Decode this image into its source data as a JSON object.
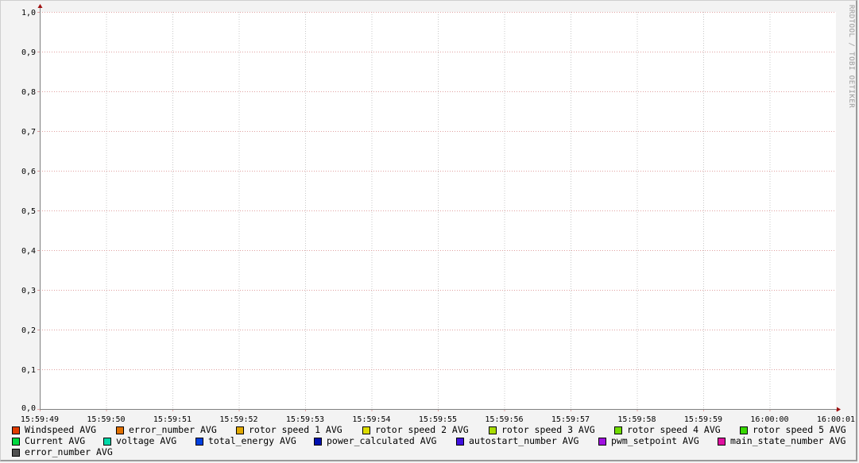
{
  "chart_data": {
    "type": "line",
    "title": "",
    "xlabel": "",
    "ylabel": "",
    "ylim": [
      0,
      1.0
    ],
    "y_ticks": [
      "0,0",
      "0,1",
      "0,2",
      "0,3",
      "0,4",
      "0,5",
      "0,6",
      "0,7",
      "0,8",
      "0,9",
      "1,0"
    ],
    "x_ticks": [
      "15:59:49",
      "15:59:50",
      "15:59:51",
      "15:59:52",
      "15:59:53",
      "15:59:54",
      "15:59:55",
      "15:59:56",
      "15:59:57",
      "15:59:58",
      "15:59:59",
      "16:00:00",
      "16:00:01"
    ],
    "grid": true,
    "legend_placement": "bottom",
    "series": [
      {
        "name": "Windspeed AVG",
        "color": "#e03c00",
        "values": []
      },
      {
        "name": "error_number AVG",
        "color": "#e07000",
        "values": []
      },
      {
        "name": "rotor speed 1 AVG",
        "color": "#e0a800",
        "values": []
      },
      {
        "name": "rotor speed 2 AVG",
        "color": "#dcdc00",
        "values": []
      },
      {
        "name": "rotor speed 3 AVG",
        "color": "#a8dc00",
        "values": []
      },
      {
        "name": "rotor speed 4 AVG",
        "color": "#70dc00",
        "values": []
      },
      {
        "name": "rotor speed 5 AVG",
        "color": "#38d800",
        "values": []
      },
      {
        "name": "Current AVG",
        "color": "#00d840",
        "values": []
      },
      {
        "name": "voltage AVG",
        "color": "#00d8a8",
        "values": []
      },
      {
        "name": "total_energy AVG",
        "color": "#0040e0",
        "values": []
      },
      {
        "name": "power_calculated AVG",
        "color": "#0010b0",
        "values": []
      },
      {
        "name": "autostart_number AVG",
        "color": "#4010e0",
        "values": []
      },
      {
        "name": "pwm_setpoint AVG",
        "color": "#a010e0",
        "values": []
      },
      {
        "name": "main_state_number AVG",
        "color": "#e010a0",
        "values": []
      },
      {
        "name": "error_number AVG",
        "color": "#505050",
        "values": []
      }
    ]
  },
  "watermark": "RRDTOOL / TOBI OETIKER",
  "colors": {
    "background": "#f3f3f3",
    "plot": "#ffffff",
    "major_grid": "#e0a0a0",
    "minor_grid": "#c8c8c8",
    "axis": "#808080",
    "arrow": "#a01010"
  }
}
